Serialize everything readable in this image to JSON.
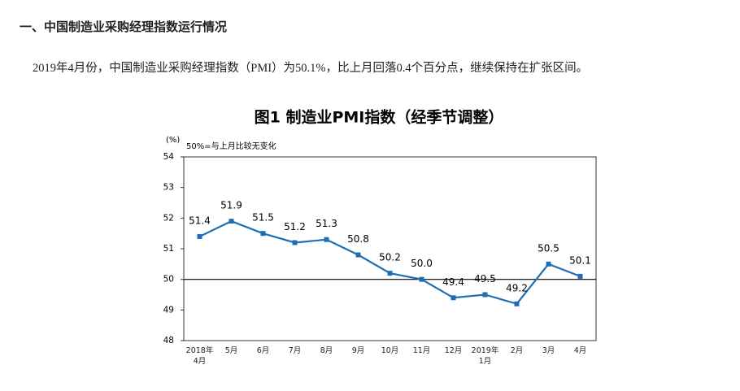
{
  "header": {
    "title": "一、中国制造业采购经理指数运行情况"
  },
  "paragraph": "2019年4月份，中国制造业采购经理指数（PMI）为50.1%，比上月回落0.4个百分点，继续保持在扩张区间。",
  "chart_data": {
    "type": "line",
    "title": "图1 制造业PMI指数（经季节调整）",
    "y_unit": "(%)",
    "note": "50%=与上月比较无变化",
    "categories": [
      "2018年\n4月",
      "5月",
      "6月",
      "7月",
      "8月",
      "9月",
      "10月",
      "11月",
      "12月",
      "2019年\n1月",
      "2月",
      "3月",
      "4月"
    ],
    "series": [
      {
        "name": "制造业PMI",
        "color": "#1f6eb5",
        "values": [
          51.4,
          51.9,
          51.5,
          51.2,
          51.3,
          50.8,
          50.2,
          50.0,
          49.4,
          49.5,
          49.2,
          50.5,
          50.1
        ],
        "value_labels": [
          "51.4",
          "51.9",
          "51.5",
          "51.2",
          "51.3",
          "50.8",
          "50.2",
          "50.0",
          "49.4",
          "49.5",
          "49.2",
          "50.5",
          "50.1"
        ]
      }
    ],
    "ylim": [
      48,
      54
    ],
    "yticks": [
      48,
      49,
      50,
      51,
      52,
      53,
      54
    ],
    "reference_line": 50
  }
}
